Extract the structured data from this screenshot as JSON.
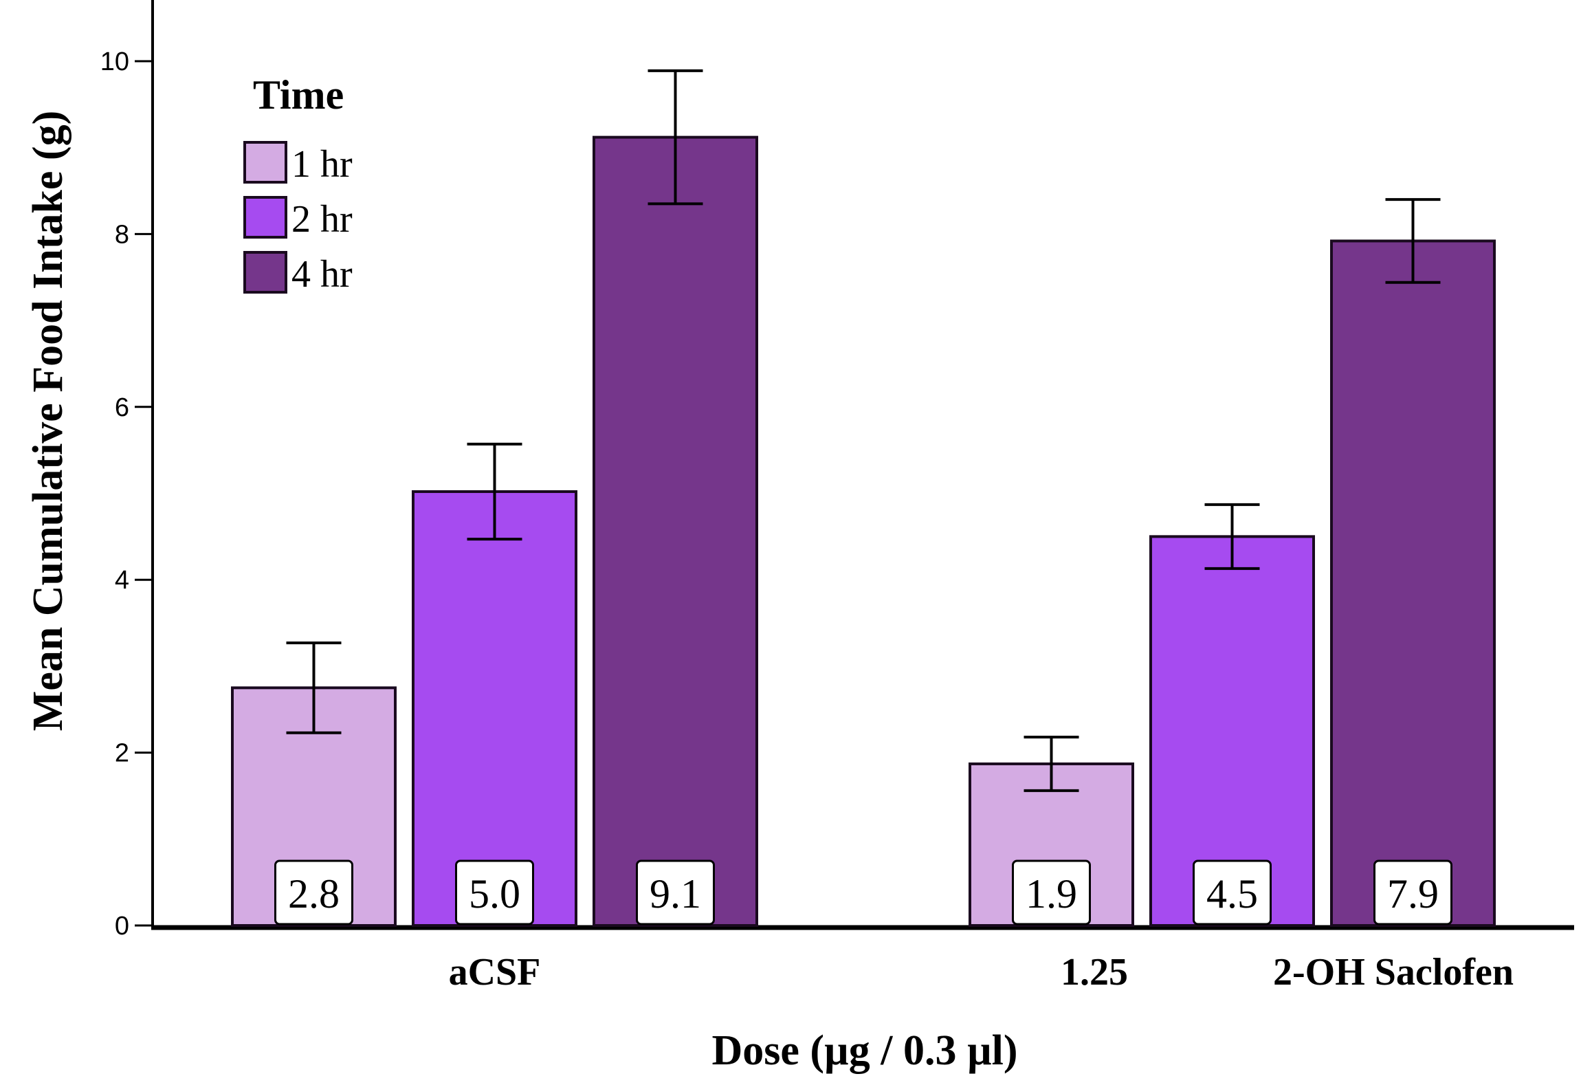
{
  "chart_data": {
    "type": "bar",
    "categories": [
      "aCSF",
      "2-OH Saclofen"
    ],
    "dose_annotation": "1.25",
    "series": [
      {
        "name": "1 hr",
        "color": "#d4abe3",
        "values": [
          2.75,
          1.87
        ],
        "errors": [
          0.52,
          0.31
        ],
        "labels": [
          "2.8",
          "1.9"
        ]
      },
      {
        "name": "2 hr",
        "color": "#a64bf0",
        "values": [
          5.02,
          4.5
        ],
        "errors": [
          0.55,
          0.37
        ],
        "labels": [
          "5.0",
          "4.5"
        ]
      },
      {
        "name": "4 hr",
        "color": "#75368b",
        "values": [
          9.12,
          7.92
        ],
        "errors": [
          0.77,
          0.48
        ],
        "labels": [
          "9.1",
          "7.9"
        ]
      }
    ],
    "legend_title": "Time",
    "legend_position": "top-left",
    "xlabel": "Dose (µg / 0.3 µl)",
    "ylabel": "Mean Cumulative Food Intake (g)",
    "ylim": [
      0,
      10.5
    ],
    "yticks": [
      0,
      2,
      4,
      6,
      8,
      10
    ],
    "grid": false
  }
}
